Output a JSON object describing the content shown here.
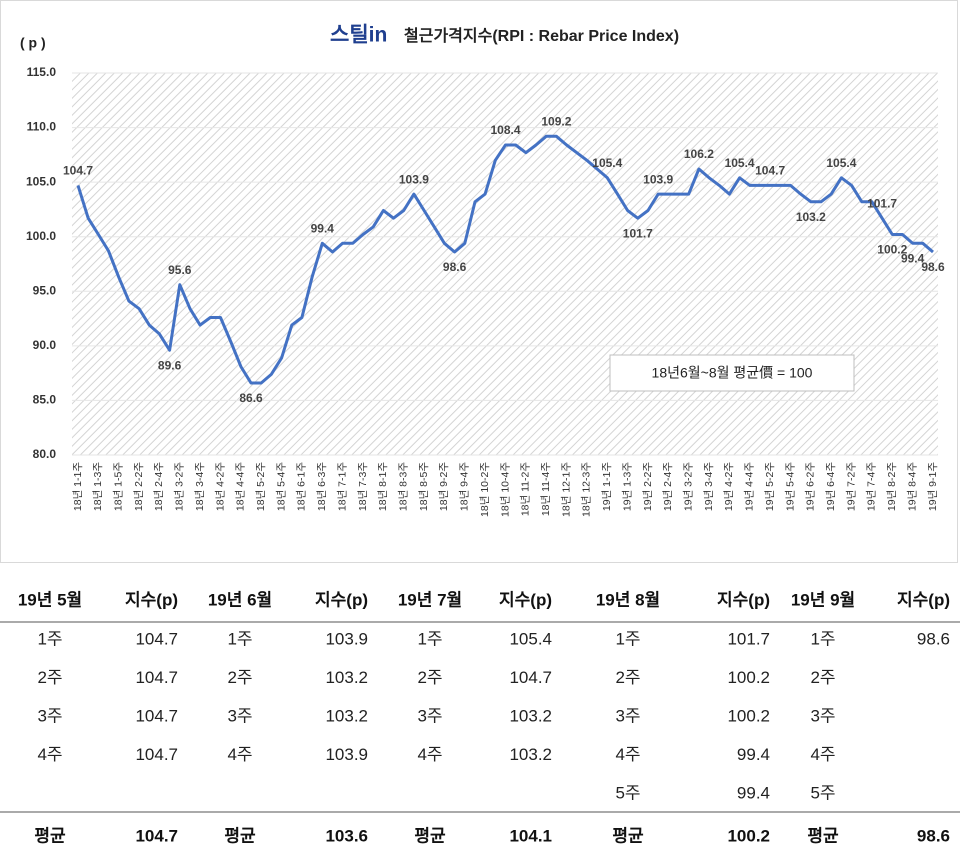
{
  "chart_data": {
    "type": "line",
    "brand": "스틸in",
    "title": "철근가격지수(RPI : Rebar Price Index)",
    "y_label": "( p )",
    "annotation": "18년6월~8월 평균價 = 100",
    "color": "#4472c4",
    "grid": true,
    "ylim": [
      80,
      115
    ],
    "yticks": [
      {
        "value": 80,
        "label": "80.0"
      },
      {
        "value": 85,
        "label": "85.0"
      },
      {
        "value": 90,
        "label": "90.0"
      },
      {
        "value": 95,
        "label": "95.0"
      },
      {
        "value": 100,
        "label": "100.0"
      },
      {
        "value": 105,
        "label": "105.0"
      },
      {
        "value": 110,
        "label": "110.0"
      },
      {
        "value": 115,
        "label": "115.0"
      }
    ],
    "categories": [
      "18년 1-1주",
      null,
      "18년 1-3주",
      null,
      "18년 1-5주",
      null,
      "18년 2-2주",
      null,
      "18년 2-4주",
      null,
      "18년 3-2주",
      null,
      "18년 3-4주",
      null,
      "18년 4-2주",
      null,
      "18년 4-4주",
      null,
      "18년 5-2주",
      null,
      "18년 5-4주",
      null,
      "18년 6-1주",
      null,
      "18년 6-3주",
      null,
      "18년 7-1주",
      null,
      "18년 7-3주",
      null,
      "18년 8-1주",
      null,
      "18년 8-3주",
      null,
      "18년 8-5주",
      null,
      "18년 9-2주",
      null,
      "18년 9-4주",
      null,
      "18년 10-2주",
      null,
      "18년 10-4주",
      null,
      "18년 11-2주",
      null,
      "18년 11-4주",
      null,
      "18년 12-1주",
      null,
      "18년 12-3주",
      null,
      "19년 1-1주",
      null,
      "19년 1-3주",
      null,
      "19년 2-2주",
      null,
      "19년 2-4주",
      null,
      "19년 3-2주",
      null,
      "19년 3-4주",
      null,
      "19년 4-2주",
      null,
      "19년 4-4주",
      null,
      "19년 5-2주",
      null,
      "19년 5-4주",
      null,
      "19년 6-2주",
      null,
      "19년 6-4주",
      null,
      "19년 7-2주",
      null,
      "19년 7-4주",
      null,
      "19년 8-2주",
      null,
      "19년 8-4주",
      null,
      "19년 9-1주"
    ],
    "values": [
      104.7,
      101.7,
      100.2,
      98.7,
      96.3,
      94.1,
      93.4,
      91.9,
      91.1,
      89.6,
      95.6,
      93.4,
      91.9,
      92.6,
      92.6,
      90.4,
      88.1,
      86.6,
      86.6,
      87.4,
      88.9,
      91.9,
      92.6,
      96.3,
      99.4,
      98.6,
      99.4,
      99.4,
      100.2,
      100.9,
      102.4,
      101.7,
      102.4,
      103.9,
      102.4,
      100.9,
      99.4,
      98.6,
      99.4,
      103.2,
      103.9,
      107.0,
      108.4,
      108.4,
      107.7,
      108.4,
      109.2,
      109.2,
      108.4,
      107.7,
      107.0,
      106.2,
      105.4,
      103.9,
      102.4,
      101.7,
      102.4,
      103.9,
      103.9,
      103.9,
      103.9,
      106.2,
      105.4,
      104.7,
      103.9,
      105.4,
      104.7,
      104.7,
      104.7,
      104.7,
      104.7,
      103.9,
      103.2,
      103.2,
      103.9,
      105.4,
      104.7,
      103.2,
      103.2,
      101.7,
      100.2,
      100.2,
      99.4,
      99.4,
      98.6
    ],
    "value_labels": [
      "104.7",
      null,
      null,
      null,
      null,
      null,
      null,
      null,
      null,
      "89.6",
      "95.6",
      null,
      null,
      null,
      null,
      null,
      null,
      "86.6",
      null,
      null,
      null,
      null,
      null,
      null,
      "99.4",
      null,
      null,
      null,
      null,
      null,
      null,
      null,
      null,
      "103.9",
      null,
      null,
      null,
      "98.6",
      null,
      null,
      null,
      null,
      "108.4",
      null,
      null,
      null,
      null,
      "109.2",
      null,
      null,
      null,
      null,
      "105.4",
      null,
      null,
      "101.7",
      null,
      "103.9",
      null,
      null,
      null,
      "106.2",
      null,
      null,
      null,
      "105.4",
      null,
      null,
      "104.7",
      null,
      null,
      null,
      "103.2",
      null,
      null,
      "105.4",
      null,
      null,
      null,
      "101.7",
      "100.2",
      null,
      "99.4",
      null,
      "98.6"
    ]
  },
  "table": {
    "header": [
      "19년 5월",
      "지수(p)",
      "19년 6월",
      "지수(p)",
      "19년 7월",
      "지수(p)",
      "19년 8월",
      "지수(p)",
      "19년 9월",
      "지수(p)"
    ],
    "rows": [
      [
        "1주",
        104.7,
        "1주",
        103.9,
        "1주",
        105.4,
        "1주",
        101.7,
        "1주",
        98.6
      ],
      [
        "2주",
        104.7,
        "2주",
        103.2,
        "2주",
        104.7,
        "2주",
        100.2,
        "2주",
        null
      ],
      [
        "3주",
        104.7,
        "3주",
        103.2,
        "3주",
        103.2,
        "3주",
        100.2,
        "3주",
        null
      ],
      [
        "4주",
        104.7,
        "4주",
        103.9,
        "4주",
        103.2,
        "4주",
        99.4,
        "4주",
        null
      ],
      [
        null,
        null,
        null,
        null,
        null,
        null,
        "5주",
        99.4,
        "5주",
        null
      ]
    ],
    "footer": [
      "평균",
      104.7,
      "평균",
      103.6,
      "평균",
      104.1,
      "평균",
      100.2,
      "평균",
      98.6
    ]
  }
}
